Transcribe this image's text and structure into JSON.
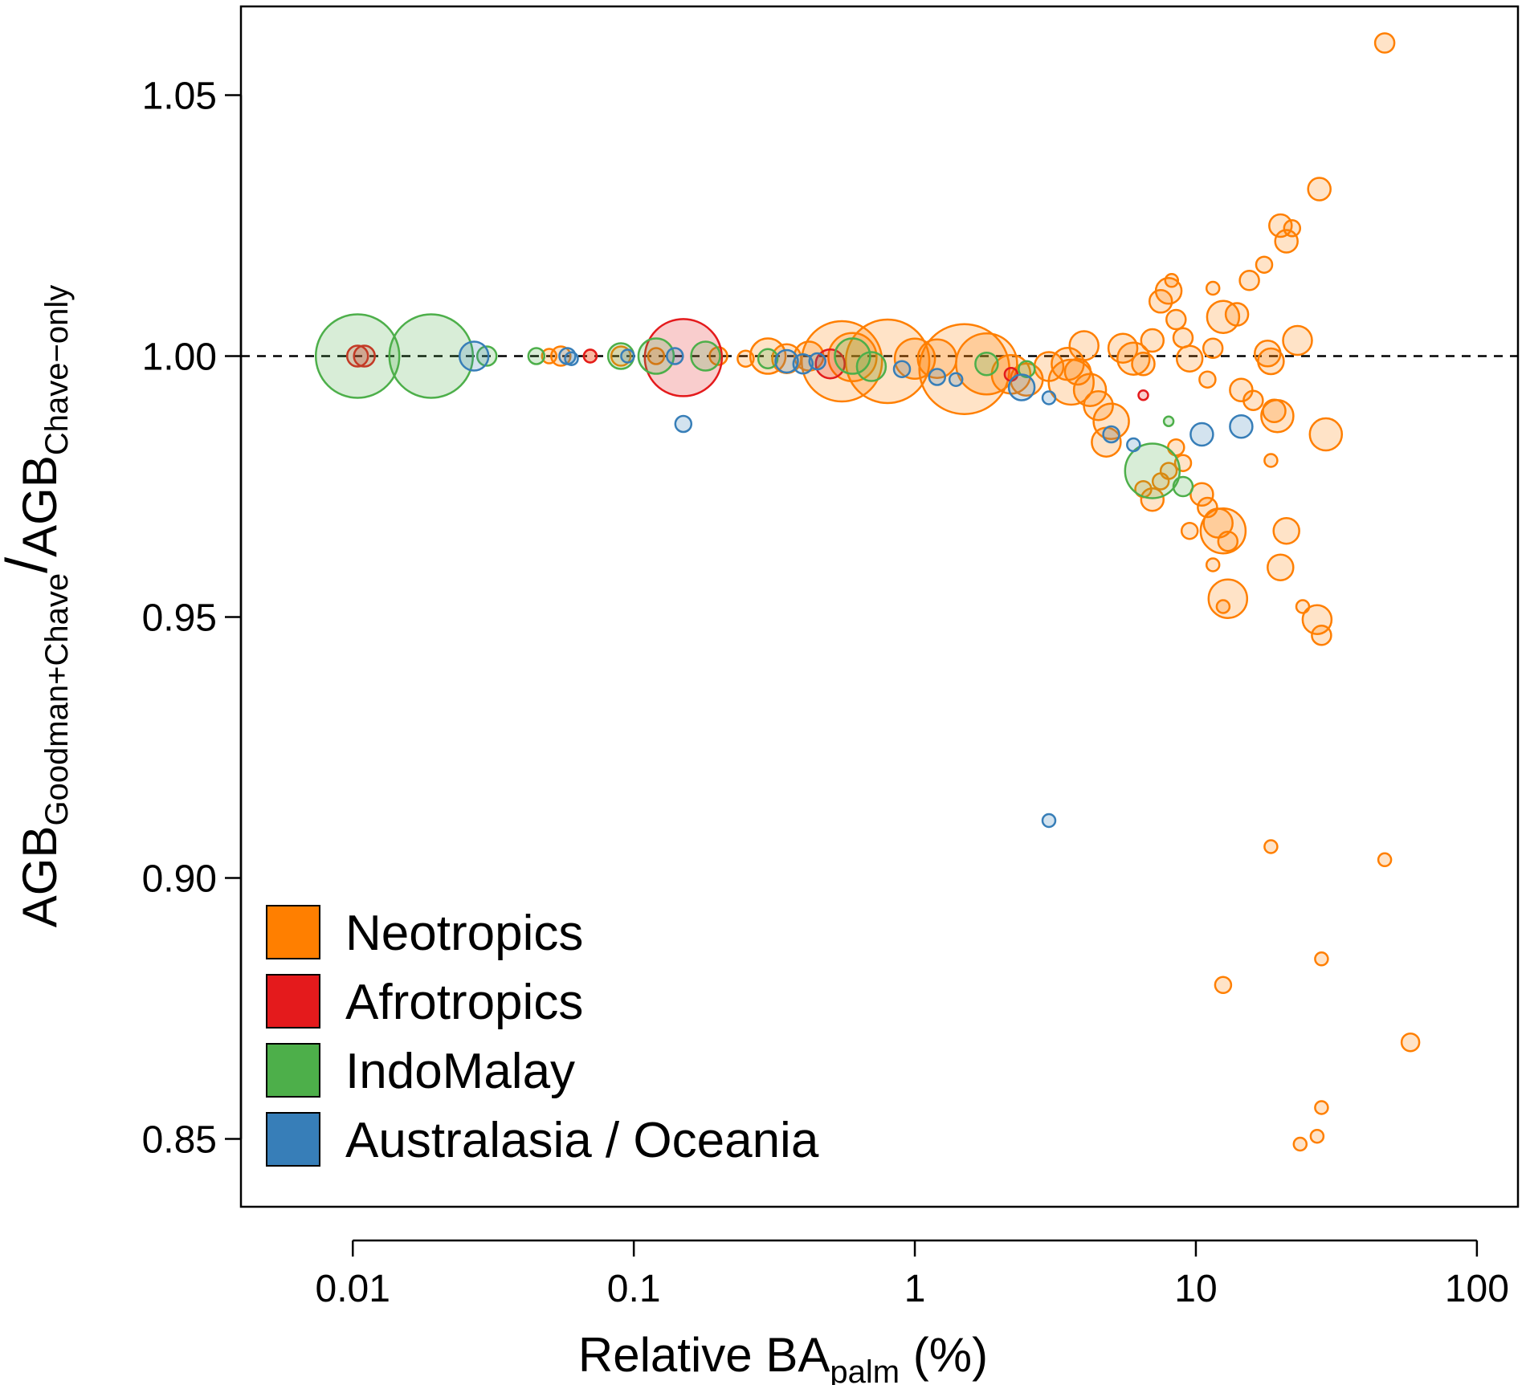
{
  "chart_data": {
    "type": "scatter",
    "xscale": "log",
    "xlim": [
      0.004,
      140
    ],
    "ylim": [
      0.837,
      1.067
    ],
    "x_ticks": [
      "0.01",
      "0.1",
      "1",
      "10",
      "100"
    ],
    "y_ticks": [
      "0.85",
      "0.90",
      "0.95",
      "1.00",
      "1.05"
    ],
    "reference_line": {
      "y": 1.0,
      "style": "dashed"
    },
    "xlabel": {
      "main": "Relative BA",
      "sub": "palm",
      "suffix": " (%)"
    },
    "ylabel": {
      "numerator": "AGB",
      "numerator_sub": "Goodman+Chave",
      "slash": "/",
      "denominator": "AGB",
      "denominator_sub": "Chave−only"
    },
    "legend": {
      "placement": "bottom-left",
      "entries": [
        "Neotropics",
        "Afrotropics",
        "IndoMalay",
        "Australasia / Oceania"
      ]
    },
    "colors": {
      "Neotropics": "#FF7F00",
      "Afrotropics": "#E41A1C",
      "IndoMalay": "#4DAF4A",
      "Australasia / Oceania": "#377EB8"
    },
    "series": [
      {
        "name": "Neotropics",
        "points": [
          [
            0.05,
            1.0,
            9
          ],
          [
            0.055,
            1.0,
            12
          ],
          [
            0.07,
            1.0,
            8
          ],
          [
            0.09,
            1.0,
            12
          ],
          [
            0.12,
            1.0,
            10
          ],
          [
            0.2,
            1.0,
            11
          ],
          [
            0.25,
            0.9995,
            10
          ],
          [
            0.3,
            1.0,
            22
          ],
          [
            0.35,
            0.9995,
            18
          ],
          [
            0.42,
            1.0,
            18
          ],
          [
            0.55,
            0.999,
            50
          ],
          [
            0.6,
            0.9998,
            30
          ],
          [
            0.8,
            0.999,
            52
          ],
          [
            1.0,
            0.9995,
            25
          ],
          [
            1.2,
            0.9995,
            24
          ],
          [
            1.5,
            0.9975,
            56
          ],
          [
            1.8,
            0.9985,
            38
          ],
          [
            2.2,
            0.9965,
            24
          ],
          [
            2.5,
            0.9955,
            20
          ],
          [
            3.0,
            0.998,
            18
          ],
          [
            3.5,
            0.9985,
            20
          ],
          [
            3.6,
            0.995,
            28
          ],
          [
            3.8,
            0.997,
            16
          ],
          [
            4.0,
            1.002,
            18
          ],
          [
            4.2,
            0.9935,
            20
          ],
          [
            4.5,
            0.9905,
            18
          ],
          [
            5.0,
            0.9875,
            22
          ],
          [
            4.8,
            0.9835,
            18
          ],
          [
            5.5,
            1.0015,
            18
          ],
          [
            6.0,
            0.9995,
            20
          ],
          [
            6.5,
            0.9985,
            14
          ],
          [
            7.0,
            1.003,
            14
          ],
          [
            7.5,
            1.0105,
            14
          ],
          [
            8.0,
            1.0125,
            16
          ],
          [
            8.2,
            1.0145,
            8
          ],
          [
            8.5,
            1.007,
            12
          ],
          [
            9.0,
            1.0035,
            12
          ],
          [
            9.5,
            0.9995,
            16
          ],
          [
            6.5,
            0.9745,
            10
          ],
          [
            7.0,
            0.9725,
            14
          ],
          [
            7.5,
            0.976,
            10
          ],
          [
            8.0,
            0.978,
            10
          ],
          [
            9.0,
            0.9795,
            10
          ],
          [
            8.5,
            0.9825,
            10
          ],
          [
            9.5,
            0.9665,
            10
          ],
          [
            10.5,
            0.9735,
            14
          ],
          [
            11.0,
            0.971,
            12
          ],
          [
            12.0,
            0.968,
            18
          ],
          [
            12.5,
            0.9665,
            28
          ],
          [
            13.0,
            0.9645,
            12
          ],
          [
            13.0,
            0.9535,
            24
          ],
          [
            12.5,
            0.952,
            8
          ],
          [
            11.5,
            0.96,
            8
          ],
          [
            11.0,
            0.9955,
            10
          ],
          [
            12.5,
            1.0075,
            20
          ],
          [
            14.0,
            1.008,
            14
          ],
          [
            14.5,
            0.9935,
            14
          ],
          [
            16.0,
            0.9915,
            12
          ],
          [
            11.5,
            1.0015,
            12
          ],
          [
            11.5,
            1.013,
            8
          ],
          [
            15.5,
            1.0145,
            12
          ],
          [
            17.5,
            1.0175,
            10
          ],
          [
            18.0,
            1.0005,
            16
          ],
          [
            18.5,
            0.999,
            16
          ],
          [
            19.0,
            0.9895,
            14
          ],
          [
            19.5,
            0.9885,
            20
          ],
          [
            20.0,
            1.025,
            14
          ],
          [
            21.0,
            1.022,
            14
          ],
          [
            22.0,
            1.0245,
            10
          ],
          [
            23.0,
            1.003,
            18
          ],
          [
            20.0,
            0.9595,
            16
          ],
          [
            21.0,
            0.9665,
            16
          ],
          [
            27.5,
            1.032,
            14
          ],
          [
            29.0,
            0.985,
            20
          ],
          [
            27.0,
            0.9495,
            18
          ],
          [
            28.0,
            0.9465,
            12
          ],
          [
            24.0,
            0.952,
            8
          ],
          [
            18.5,
            0.98,
            8
          ],
          [
            47.0,
            1.06,
            12
          ],
          [
            18.5,
            0.906,
            8
          ],
          [
            47.0,
            0.9035,
            8
          ],
          [
            12.5,
            0.8795,
            10
          ],
          [
            28.0,
            0.8845,
            8
          ],
          [
            58.0,
            0.8685,
            11
          ],
          [
            28.0,
            0.856,
            8
          ],
          [
            23.5,
            0.849,
            8
          ],
          [
            27.0,
            0.8505,
            8
          ]
        ]
      },
      {
        "name": "Afrotropics",
        "points": [
          [
            0.0104,
            1.0,
            13
          ],
          [
            0.011,
            1.0,
            13
          ],
          [
            0.07,
            1.0,
            8
          ],
          [
            0.15,
            0.9997,
            48
          ],
          [
            0.5,
            0.9985,
            18
          ],
          [
            2.2,
            0.9965,
            8
          ],
          [
            6.5,
            0.9925,
            6
          ]
        ]
      },
      {
        "name": "IndoMalay",
        "points": [
          [
            0.0104,
            1.0,
            52
          ],
          [
            0.019,
            1.0,
            52
          ],
          [
            0.03,
            1.0,
            12
          ],
          [
            0.045,
            1.0,
            10
          ],
          [
            0.09,
            1.0,
            16
          ],
          [
            0.12,
            1.0,
            22
          ],
          [
            0.18,
            1.0,
            18
          ],
          [
            0.3,
            0.9995,
            12
          ],
          [
            0.6,
            1.0,
            22
          ],
          [
            0.7,
            0.998,
            18
          ],
          [
            1.8,
            0.9985,
            14
          ],
          [
            2.5,
            0.9975,
            10
          ],
          [
            7.0,
            0.978,
            34
          ],
          [
            8.0,
            0.9875,
            6
          ],
          [
            9.0,
            0.975,
            12
          ]
        ]
      },
      {
        "name": "Australasia / Oceania",
        "points": [
          [
            0.027,
            1.0,
            18
          ],
          [
            0.058,
            1.0,
            10
          ],
          [
            0.06,
            0.9995,
            8
          ],
          [
            0.095,
            1.0,
            8
          ],
          [
            0.14,
            1.0,
            10
          ],
          [
            0.15,
            0.987,
            10
          ],
          [
            0.35,
            0.999,
            14
          ],
          [
            0.4,
            0.9985,
            12
          ],
          [
            0.45,
            0.999,
            10
          ],
          [
            0.9,
            0.9975,
            10
          ],
          [
            1.2,
            0.996,
            10
          ],
          [
            1.4,
            0.9955,
            8
          ],
          [
            2.4,
            0.994,
            16
          ],
          [
            3.0,
            0.992,
            8
          ],
          [
            5.0,
            0.985,
            10
          ],
          [
            6.0,
            0.983,
            8
          ],
          [
            10.5,
            0.985,
            14
          ],
          [
            14.5,
            0.9865,
            14
          ],
          [
            3.0,
            0.911,
            8
          ]
        ]
      }
    ]
  }
}
